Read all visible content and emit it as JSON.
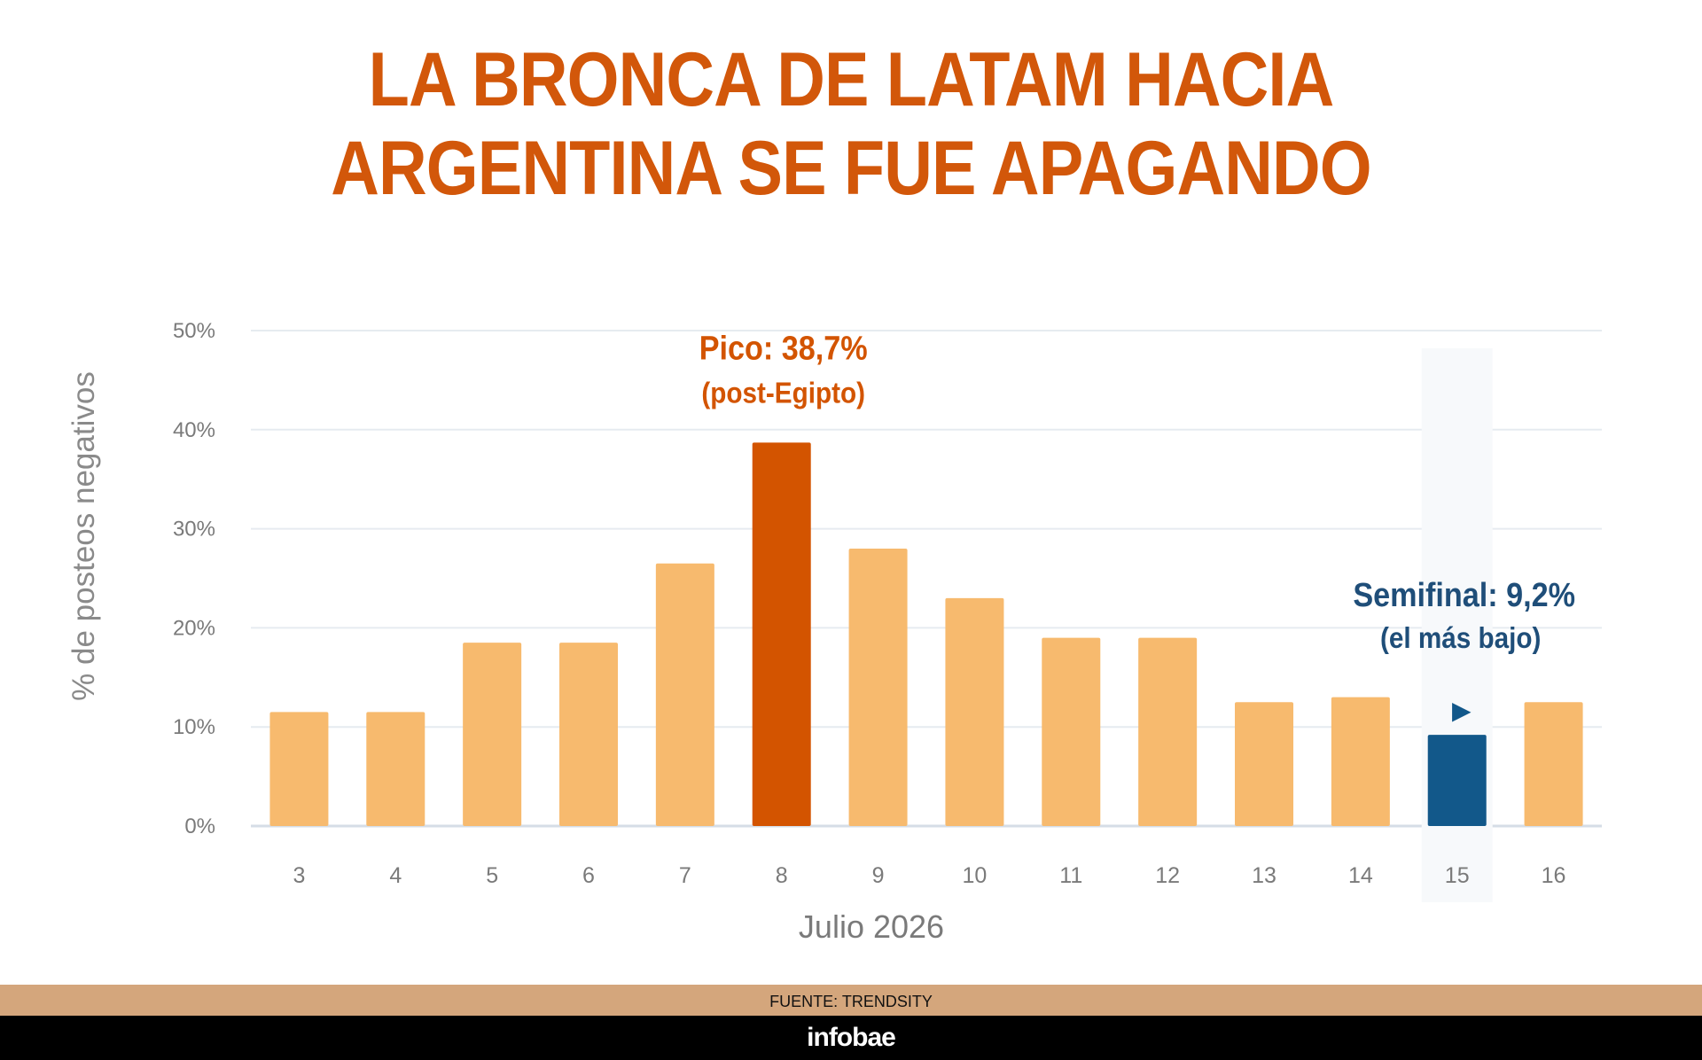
{
  "title_lines": [
    "LA BRONCA DE LATAM HACIA",
    "ARGENTINA SE FUE APAGANDO"
  ],
  "footer": {
    "source": "FUENTE: TRENDSITY",
    "brand": "infobae"
  },
  "colors": {
    "bar": "#f7ba6e",
    "peak": "#d35400",
    "lowest": "#12588a",
    "title": "#d2570a",
    "grid": "#e6ebf0"
  },
  "chart_data": {
    "type": "bar",
    "xlabel": "Julio 2026",
    "ylabel": "% de posteos negativos",
    "ylim": [
      0,
      50
    ],
    "yticks": [
      0,
      10,
      20,
      30,
      40,
      50
    ],
    "ytick_labels": [
      "0%",
      "10%",
      "20%",
      "30%",
      "40%",
      "50%"
    ],
    "grid": true,
    "categories": [
      "3",
      "4",
      "5",
      "6",
      "7",
      "8",
      "9",
      "10",
      "11",
      "12",
      "13",
      "14",
      "15",
      "16"
    ],
    "values": [
      11.5,
      11.5,
      18.5,
      18.5,
      26.5,
      38.7,
      28,
      23,
      19,
      19,
      12.5,
      13,
      9.2,
      12.5
    ],
    "highlights": {
      "peak": "8",
      "lowest": "15"
    },
    "annotations": [
      {
        "category": "8",
        "lines": [
          "Pico: 38,7%",
          "(post-Egipto)"
        ],
        "color": "#d35400"
      },
      {
        "category": "15",
        "lines": [
          "Semifinal: 9,2%",
          "(el más bajo)"
        ],
        "color": "#1f4e79",
        "marker": "▶"
      }
    ]
  }
}
